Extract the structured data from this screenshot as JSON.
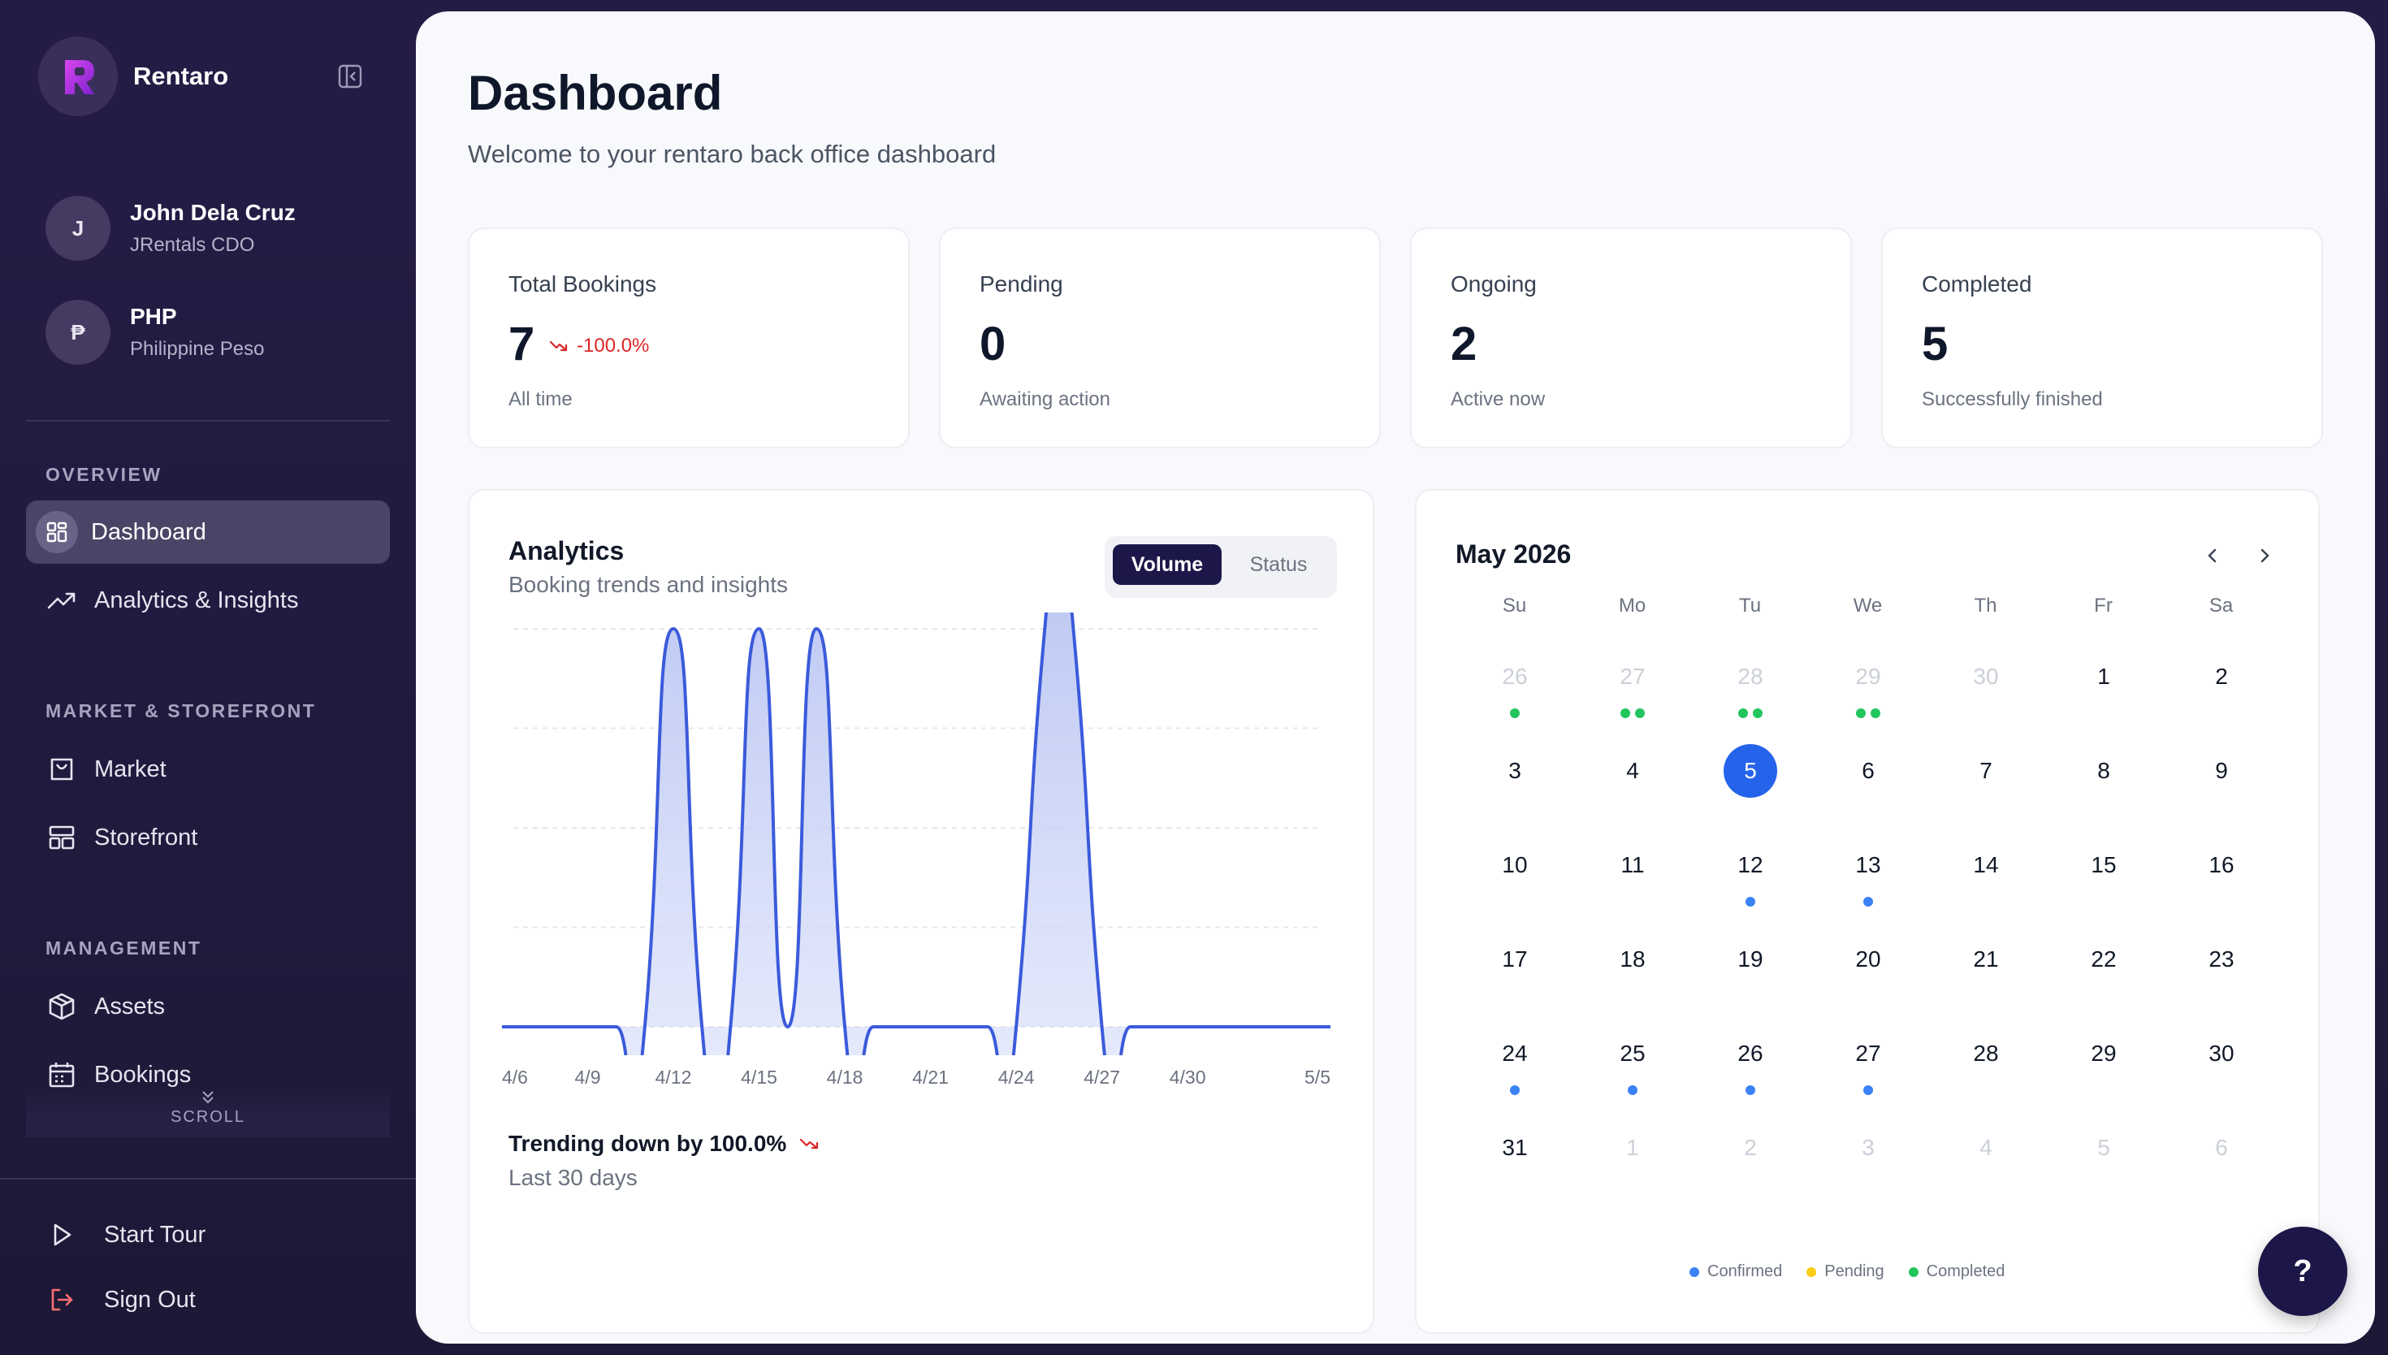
{
  "app": {
    "name": "Rentaro"
  },
  "user": {
    "initial": "J",
    "name": "John Dela Cruz",
    "role": "JRentals CDO"
  },
  "currency": {
    "symbol": "₱",
    "code": "PHP",
    "name": "Philippine Peso"
  },
  "sidebar": {
    "sections": [
      {
        "label": "OVERVIEW",
        "items": [
          {
            "label": "Dashboard",
            "icon": "grid-icon",
            "active": true
          },
          {
            "label": "Analytics & Insights",
            "icon": "trend-up-icon"
          }
        ]
      },
      {
        "label": "MARKET & STOREFRONT",
        "items": [
          {
            "label": "Market",
            "icon": "bag-icon"
          },
          {
            "label": "Storefront",
            "icon": "layout-icon"
          }
        ]
      },
      {
        "label": "MANAGEMENT",
        "items": [
          {
            "label": "Assets",
            "icon": "box-icon"
          },
          {
            "label": "Bookings",
            "icon": "calendar-icon"
          }
        ]
      }
    ],
    "scroll_hint": "SCROLL",
    "bottom": [
      {
        "label": "Start Tour",
        "icon": "play-icon"
      },
      {
        "label": "Sign Out",
        "icon": "logout-icon",
        "color": "#f87171"
      }
    ]
  },
  "header": {
    "title": "Dashboard",
    "subtitle": "Welcome to your rentaro back office dashboard"
  },
  "stats": [
    {
      "label": "Total Bookings",
      "value": "7",
      "sub": "All time",
      "trend": "-100.0%"
    },
    {
      "label": "Pending",
      "value": "0",
      "sub": "Awaiting action"
    },
    {
      "label": "Ongoing",
      "value": "2",
      "sub": "Active now"
    },
    {
      "label": "Completed",
      "value": "5",
      "sub": "Successfully finished"
    }
  ],
  "analytics": {
    "title": "Analytics",
    "subtitle": "Booking trends and insights",
    "toggle": [
      "Volume",
      "Status"
    ],
    "footer_title": "Trending down by 100.0%",
    "footer_sub": "Last 30 days"
  },
  "chart_data": {
    "type": "area",
    "x_tick_labels": [
      "4/6",
      "4/9",
      "4/12",
      "4/15",
      "4/18",
      "4/21",
      "4/24",
      "4/27",
      "4/30",
      "5/5"
    ],
    "x": [
      "4/6",
      "4/7",
      "4/8",
      "4/9",
      "4/10",
      "4/11",
      "4/12",
      "4/13",
      "4/14",
      "4/15",
      "4/16",
      "4/17",
      "4/18",
      "4/19",
      "4/20",
      "4/21",
      "4/22",
      "4/23",
      "4/24",
      "4/25",
      "4/26",
      "4/27",
      "4/28",
      "4/29",
      "4/30",
      "5/1",
      "5/2",
      "5/3",
      "5/4",
      "5/5"
    ],
    "values": [
      0,
      0,
      0,
      0,
      0,
      0,
      1,
      0,
      0,
      1,
      0,
      1,
      0,
      0,
      0,
      0,
      0,
      0,
      0,
      1,
      1,
      0,
      0,
      0,
      0,
      0,
      0,
      0,
      0,
      0
    ],
    "ylim": [
      0,
      1
    ],
    "grid": true,
    "color": "#3b5bdb",
    "fill": "#c7d2fe"
  },
  "calendar": {
    "title": "May 2026",
    "weekdays": [
      "Su",
      "Mo",
      "Tu",
      "We",
      "Th",
      "Fr",
      "Sa"
    ],
    "weeks": [
      [
        {
          "d": "26",
          "m": true,
          "dots": [
            "completed"
          ]
        },
        {
          "d": "27",
          "m": true,
          "dots": [
            "completed",
            "completed"
          ]
        },
        {
          "d": "28",
          "m": true,
          "dots": [
            "completed",
            "completed"
          ]
        },
        {
          "d": "29",
          "m": true,
          "dots": [
            "completed",
            "completed"
          ]
        },
        {
          "d": "30",
          "m": true
        },
        {
          "d": "1"
        },
        {
          "d": "2"
        }
      ],
      [
        {
          "d": "3"
        },
        {
          "d": "4"
        },
        {
          "d": "5",
          "today": true
        },
        {
          "d": "6"
        },
        {
          "d": "7"
        },
        {
          "d": "8"
        },
        {
          "d": "9"
        }
      ],
      [
        {
          "d": "10"
        },
        {
          "d": "11"
        },
        {
          "d": "12",
          "dots": [
            "confirmed"
          ]
        },
        {
          "d": "13",
          "dots": [
            "confirmed"
          ]
        },
        {
          "d": "14"
        },
        {
          "d": "15"
        },
        {
          "d": "16"
        }
      ],
      [
        {
          "d": "17"
        },
        {
          "d": "18"
        },
        {
          "d": "19"
        },
        {
          "d": "20"
        },
        {
          "d": "21"
        },
        {
          "d": "22"
        },
        {
          "d": "23"
        }
      ],
      [
        {
          "d": "24",
          "dots": [
            "confirmed"
          ]
        },
        {
          "d": "25",
          "dots": [
            "confirmed"
          ]
        },
        {
          "d": "26",
          "dots": [
            "confirmed"
          ]
        },
        {
          "d": "27",
          "dots": [
            "confirmed"
          ]
        },
        {
          "d": "28"
        },
        {
          "d": "29"
        },
        {
          "d": "30"
        }
      ],
      [
        {
          "d": "31"
        },
        {
          "d": "1",
          "m": true
        },
        {
          "d": "2",
          "m": true
        },
        {
          "d": "3",
          "m": true
        },
        {
          "d": "4",
          "m": true
        },
        {
          "d": "5",
          "m": true
        },
        {
          "d": "6",
          "m": true
        }
      ]
    ],
    "legend": [
      {
        "label": "Confirmed",
        "key": "confirmed",
        "color": "#3b82f6"
      },
      {
        "label": "Pending",
        "key": "pending",
        "color": "#facc15"
      },
      {
        "label": "Completed",
        "key": "completed",
        "color": "#22c55e"
      }
    ]
  },
  "help": {
    "label": "?"
  }
}
